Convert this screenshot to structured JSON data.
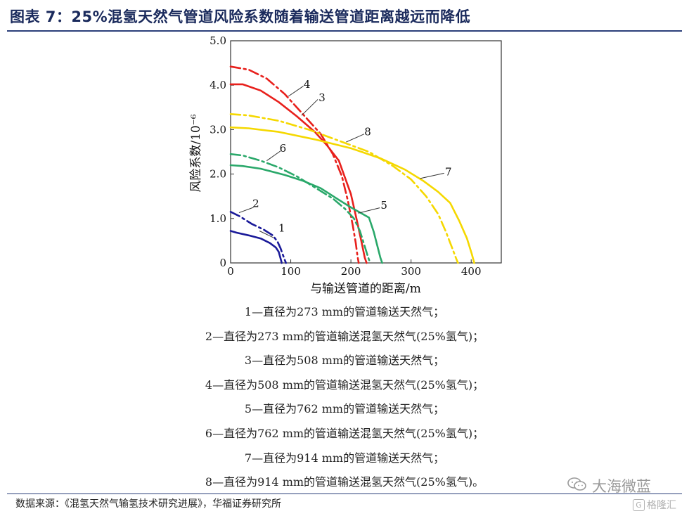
{
  "figure": {
    "title": "图表 7：25%混氢天然气管道风险系数随着输送管道距离越远而降低",
    "source": "数据来源：《混氢天然气输氢技术研究进展》，华福证券研究所",
    "watermark": "大海微蓝",
    "corner_mark": "格隆汇",
    "accent_color": "#2b3f7a"
  },
  "legend_items": [
    "1—直径为273 mm的管道输送天然气；",
    "2—直径为273 mm的管道输送混氢天然气(25%氢气)；",
    "3—直径为508 mm的管道输送天然气；",
    "4—直径为508 mm的管道输送混氢天然气(25%氢气)；",
    "5—直径为762 mm的管道输送天然气；",
    "6—直径为762 mm的管道输送混氢天然气(25%氢气)；",
    "7—直径为914 mm的管道输送天然气；",
    "8—直径为914 mm的管道输送混氢天然气(25%氢气)。"
  ],
  "chart_data": {
    "type": "line",
    "title": "",
    "xlabel": "与输送管道的距离/m",
    "ylabel": "风险系数/10⁻⁶",
    "xlim": [
      0,
      450
    ],
    "ylim": [
      0,
      5.0
    ],
    "x_ticks": [
      "0",
      "100",
      "200",
      "300",
      "400"
    ],
    "y_ticks": [
      "0",
      "1.0",
      "2.0",
      "3.0",
      "4.0",
      "5.0"
    ],
    "grid": false,
    "series": [
      {
        "name": "1",
        "color": "#1a1a99",
        "style": "solid",
        "x": [
          0,
          10,
          30,
          50,
          65,
          75,
          80,
          82,
          84,
          85
        ],
        "y": [
          0.72,
          0.68,
          0.62,
          0.55,
          0.45,
          0.35,
          0.25,
          0.15,
          0.05,
          0
        ]
      },
      {
        "name": "2",
        "color": "#1a1a99",
        "style": "dashdot",
        "x": [
          0,
          15,
          35,
          55,
          70,
          78,
          83,
          87,
          90,
          92
        ],
        "y": [
          1.15,
          1.05,
          0.88,
          0.75,
          0.62,
          0.48,
          0.33,
          0.18,
          0.07,
          0
        ]
      },
      {
        "name": "3",
        "color": "#e8201c",
        "style": "solid",
        "x": [
          0,
          20,
          50,
          80,
          110,
          140,
          160,
          180,
          200,
          210,
          218,
          223,
          226
        ],
        "y": [
          4.02,
          4.02,
          3.88,
          3.62,
          3.3,
          2.95,
          2.65,
          2.3,
          1.55,
          0.95,
          0.45,
          0.12,
          0
        ]
      },
      {
        "name": "4",
        "color": "#e8201c",
        "style": "dashdot",
        "x": [
          0,
          30,
          60,
          90,
          120,
          150,
          170,
          185,
          195,
          203,
          208,
          211,
          213
        ],
        "y": [
          4.42,
          4.35,
          4.15,
          3.8,
          3.35,
          2.9,
          2.45,
          1.95,
          1.4,
          0.85,
          0.45,
          0.15,
          0
        ]
      },
      {
        "name": "5",
        "color": "#2aa86a",
        "style": "solid",
        "x": [
          0,
          20,
          50,
          90,
          120,
          150,
          180,
          200,
          230,
          238,
          244,
          249,
          252
        ],
        "y": [
          2.2,
          2.18,
          2.12,
          1.98,
          1.85,
          1.68,
          1.42,
          1.25,
          1.02,
          0.7,
          0.38,
          0.12,
          0
        ]
      },
      {
        "name": "6",
        "color": "#2aa86a",
        "style": "dashdot",
        "x": [
          0,
          20,
          50,
          80,
          110,
          140,
          170,
          190,
          205,
          215,
          222,
          228,
          232
        ],
        "y": [
          2.45,
          2.42,
          2.3,
          2.15,
          1.95,
          1.7,
          1.45,
          1.22,
          1.0,
          0.72,
          0.42,
          0.15,
          0
        ]
      },
      {
        "name": "7",
        "color": "#f5d800",
        "style": "solid",
        "x": [
          0,
          30,
          80,
          140,
          200,
          250,
          290,
          320,
          345,
          365,
          380,
          393,
          401,
          405
        ],
        "y": [
          3.05,
          3.03,
          2.95,
          2.78,
          2.58,
          2.35,
          2.1,
          1.85,
          1.6,
          1.35,
          0.95,
          0.55,
          0.2,
          0
        ]
      },
      {
        "name": "8",
        "color": "#f5d800",
        "style": "dashdot",
        "x": [
          0,
          30,
          80,
          130,
          180,
          230,
          270,
          300,
          325,
          345,
          358,
          368,
          375,
          378
        ],
        "y": [
          3.35,
          3.32,
          3.2,
          3.0,
          2.75,
          2.5,
          2.18,
          1.88,
          1.5,
          1.1,
          0.7,
          0.35,
          0.1,
          0
        ]
      }
    ],
    "annotations": [
      {
        "text": "1",
        "x": 85,
        "y": 0.78
      },
      {
        "text": "2",
        "x": 42,
        "y": 1.34
      },
      {
        "text": "3",
        "x": 152,
        "y": 3.72
      },
      {
        "text": "4",
        "x": 127,
        "y": 4.02
      },
      {
        "text": "5",
        "x": 255,
        "y": 1.3
      },
      {
        "text": "6",
        "x": 87,
        "y": 2.58
      },
      {
        "text": "7",
        "x": 362,
        "y": 2.05
      },
      {
        "text": "8",
        "x": 228,
        "y": 2.95
      }
    ],
    "leaders": [
      {
        "x": [
          48,
          71
        ],
        "y": [
          0.72,
          0.57
        ]
      },
      {
        "x": [
          38,
          14
        ],
        "y": [
          1.25,
          1.13
        ]
      },
      {
        "x": [
          145,
          118
        ],
        "y": [
          3.68,
          3.32
        ]
      },
      {
        "x": [
          121,
          96
        ],
        "y": [
          3.98,
          3.75
        ]
      },
      {
        "x": [
          248,
          212
        ],
        "y": [
          1.24,
          1.12
        ]
      },
      {
        "x": [
          83,
          60
        ],
        "y": [
          2.52,
          2.3
        ]
      },
      {
        "x": [
          355,
          315
        ],
        "y": [
          2.02,
          1.9
        ]
      },
      {
        "x": [
          222,
          192
        ],
        "y": [
          2.9,
          2.72
        ]
      }
    ]
  }
}
